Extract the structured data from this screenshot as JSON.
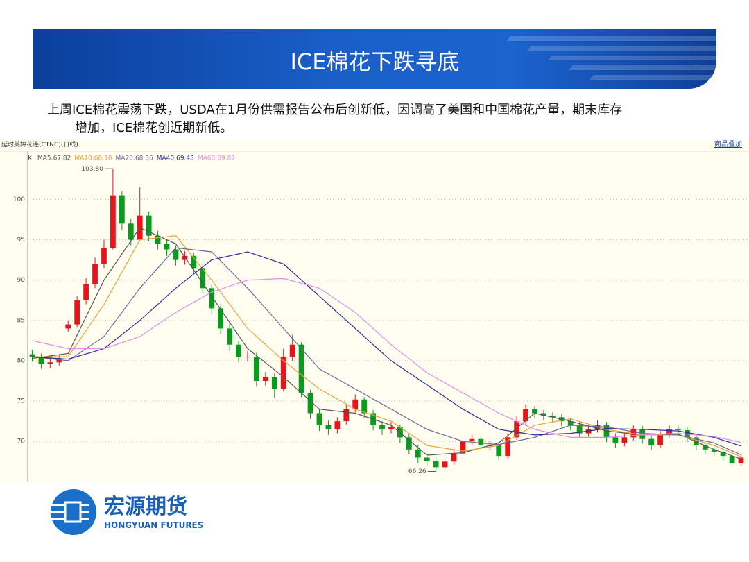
{
  "header": {
    "title": "ICE棉花下跌寻底"
  },
  "body": {
    "lines": [
      "上周ICE棉花震荡下跌，USDA在1月份供需报告公布后创新低，因调高了美国和中国棉花产量，期末库存",
      "增加，ICE棉花创近期新低。"
    ]
  },
  "chart_data": {
    "type": "candlestick",
    "title": "延时美棉花连(CTNC)(日线)",
    "link": "商品叠加",
    "legend_prefix": "K",
    "up_color": "#e8141b",
    "down_color": "#0a9a1e",
    "ylim": [
      65.2,
      105.8
    ],
    "yticks": [
      70,
      75,
      80,
      85,
      90,
      95,
      100
    ],
    "grid": true,
    "open": [
      80.8,
      80.5,
      79.6,
      79.8,
      84.0,
      84.5,
      87.5,
      89.5,
      92,
      94,
      100.5,
      97,
      95,
      98,
      95.5,
      94.5,
      93.8,
      92.5,
      93,
      91.5,
      89,
      86.5,
      84,
      82,
      80.5,
      80.5,
      77.5,
      78,
      76.5,
      80.5,
      82,
      76,
      73.5,
      72,
      71.5,
      72.5,
      74,
      75.2,
      73.5,
      72,
      71.5,
      71.8,
      70.5,
      69,
      68,
      67.6,
      66.8,
      67.5,
      68.5,
      70,
      70.3,
      69.5,
      69.5,
      68.2,
      70.5,
      72.5,
      74,
      73.5,
      73.2,
      73,
      72.5,
      72,
      71,
      71.5,
      72,
      70.5,
      69.8,
      70.5,
      71.5,
      70.3,
      69.5,
      70.8,
      71.5,
      71.4,
      70.5,
      69.5,
      69,
      68.7,
      68.2,
      67.3
    ],
    "high": [
      81.4,
      80.9,
      80.3,
      80.7,
      85.0,
      88.0,
      90.3,
      92.8,
      95.0,
      103.8,
      101.0,
      97.6,
      101.5,
      98.5,
      96.1,
      95.0,
      94.3,
      93.6,
      93.4,
      92.0,
      89.5,
      87.0,
      84.6,
      82.4,
      81.2,
      81.0,
      78.6,
      78.4,
      81.5,
      83.2,
      82.3,
      76.4,
      74.0,
      72.6,
      73.0,
      74.6,
      75.8,
      75.5,
      73.9,
      72.5,
      72.4,
      72.1,
      70.9,
      69.5,
      68.6,
      68.0,
      68.0,
      69.1,
      70.7,
      70.9,
      70.7,
      70.1,
      69.9,
      71.0,
      73.1,
      74.6,
      74.4,
      73.9,
      73.6,
      73.4,
      72.9,
      72.4,
      72.0,
      72.6,
      72.4,
      71.0,
      71.0,
      72.0,
      71.9,
      70.7,
      71.3,
      72.0,
      71.9,
      71.8,
      70.9,
      69.9,
      69.4,
      69.1,
      68.6,
      68.4
    ],
    "low": [
      79.9,
      79.0,
      79.1,
      79.4,
      83.6,
      84.1,
      87.0,
      89.0,
      91.5,
      93.8,
      96.2,
      94.3,
      94.8,
      94.8,
      93.8,
      93.0,
      91.8,
      91.9,
      90.8,
      88.3,
      85.8,
      83.3,
      81.2,
      79.8,
      79.9,
      76.8,
      76.9,
      75.4,
      76.2,
      80.0,
      75.5,
      72.8,
      71.3,
      70.8,
      71.0,
      72.1,
      73.6,
      72.9,
      71.4,
      70.8,
      71.0,
      69.8,
      68.4,
      67.3,
      66.9,
      66.26,
      66.5,
      67.1,
      68.2,
      69.6,
      68.9,
      68.9,
      67.7,
      67.9,
      70.2,
      72.0,
      72.9,
      72.6,
      72.4,
      71.9,
      71.4,
      70.4,
      70.6,
      71.1,
      69.9,
      69.2,
      69.4,
      70.1,
      69.7,
      68.9,
      69.2,
      70.5,
      70.9,
      69.9,
      68.9,
      68.4,
      68.1,
      67.6,
      66.9,
      67.0
    ],
    "close": [
      80.5,
      79.6,
      79.8,
      80.2,
      84.5,
      87.5,
      89.5,
      92,
      94,
      100.5,
      97,
      95,
      98,
      95.5,
      94.5,
      93.8,
      92.5,
      93,
      91.5,
      89,
      86.5,
      84,
      82,
      80.5,
      80.5,
      77.5,
      78,
      76.5,
      80.5,
      82,
      76,
      73.5,
      72,
      71.5,
      72.5,
      74,
      75.2,
      73.5,
      72,
      71.5,
      71.8,
      70.5,
      69,
      68,
      67.6,
      66.8,
      67.5,
      68.5,
      70,
      70.3,
      69.5,
      69.5,
      68.2,
      70.5,
      72.5,
      74,
      73.5,
      73.2,
      73,
      72.5,
      72,
      71,
      71.5,
      72,
      70.5,
      69.8,
      70.5,
      71.5,
      70.3,
      69.5,
      70.8,
      71.5,
      71.4,
      70.5,
      69.5,
      69,
      68.7,
      68.2,
      67.3,
      68
    ],
    "series": [
      {
        "name": "MA5:67.82",
        "color": "#555555",
        "x": [
          0,
          4,
          8,
          12,
          16,
          20,
          24,
          28,
          32,
          36,
          40,
          44,
          48,
          52,
          56,
          60,
          64,
          68,
          72,
          76,
          79
        ],
        "values": [
          80.3,
          80.9,
          90,
          96.5,
          94.5,
          88,
          81.5,
          78,
          74,
          73.5,
          72,
          68.3,
          68.6,
          69.8,
          73.5,
          72.5,
          71.3,
          70.8,
          70.9,
          69,
          67.82
        ]
      },
      {
        "name": "MA10:68.10",
        "color": "#f0a030",
        "x": [
          0,
          4,
          8,
          12,
          16,
          20,
          24,
          28,
          32,
          36,
          40,
          44,
          48,
          52,
          56,
          60,
          64,
          68,
          72,
          76,
          79
        ],
        "values": [
          80.5,
          80.5,
          87,
          95,
          95.5,
          90,
          84,
          80,
          76.5,
          74,
          72.5,
          69.5,
          68.8,
          69.5,
          72,
          72.8,
          71.5,
          70.8,
          70.8,
          69.5,
          68.1
        ]
      },
      {
        "name": "MA20:68.36",
        "color": "#6a6a9a",
        "x": [
          0,
          4,
          8,
          12,
          16,
          20,
          24,
          28,
          32,
          36,
          40,
          44,
          48,
          52,
          56,
          60,
          64,
          68,
          72,
          76,
          79
        ],
        "values": [
          80.5,
          80,
          83,
          89,
          94,
          93.5,
          89,
          84,
          79,
          76.5,
          74,
          71.5,
          70,
          69.6,
          70.5,
          72,
          71.8,
          71,
          70.8,
          69.8,
          68.36
        ]
      },
      {
        "name": "MA40:69.43",
        "color": "#2c2c9c",
        "x": [
          0,
          4,
          8,
          12,
          16,
          20,
          24,
          28,
          32,
          36,
          40,
          44,
          48,
          52,
          56,
          60,
          64,
          68,
          72,
          76,
          79
        ],
        "values": [
          80.5,
          80.2,
          81.5,
          85,
          89,
          92.5,
          93.5,
          92,
          88,
          84,
          80,
          77,
          74,
          71.5,
          70.8,
          71,
          71.6,
          71.5,
          71.3,
          70.5,
          69.43
        ]
      },
      {
        "name": "MA60:69.87",
        "color": "#e08ce8",
        "x": [
          0,
          4,
          8,
          12,
          16,
          20,
          24,
          28,
          32,
          36,
          40,
          44,
          48,
          52,
          56,
          60,
          64,
          68,
          72,
          76,
          79
        ],
        "values": [
          82.5,
          81.5,
          81.5,
          83,
          86,
          88.5,
          90,
          90.2,
          89,
          86,
          82,
          78.5,
          76,
          73.5,
          71.5,
          70.5,
          70.5,
          70.8,
          71,
          70.6,
          69.87
        ]
      }
    ],
    "annotations": [
      {
        "x": 9,
        "value": 103.8,
        "label": "103.80"
      },
      {
        "x": 45,
        "value": 66.26,
        "label": "66.26"
      }
    ]
  },
  "logo": {
    "name": "宏源期货",
    "name_en": "HONGYUAN FUTURES"
  }
}
